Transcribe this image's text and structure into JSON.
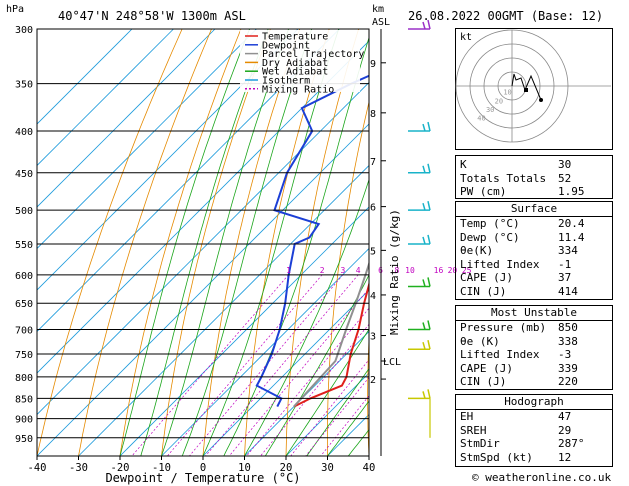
{
  "header": {
    "location": "40°47'N 248°58'W 1300m ASL",
    "datetime": "26.08.2022 00GMT (Base: 12)",
    "hpa_label": "hPa",
    "km_label": "km",
    "asl_label": "ASL"
  },
  "credit": "© weatheronline.co.uk",
  "hodograph": {
    "label": "kt",
    "ring_labels": [
      "10",
      "20",
      "30",
      "40"
    ]
  },
  "indices": [
    {
      "name": "K",
      "value": "30"
    },
    {
      "name": "Totals Totals",
      "value": "52"
    },
    {
      "name": "PW (cm)",
      "value": "1.95"
    }
  ],
  "surface": {
    "title": "Surface",
    "rows": [
      {
        "name": "Temp (°C)",
        "value": "20.4"
      },
      {
        "name": "Dewp (°C)",
        "value": "11.4"
      },
      {
        "name": "θe(K)",
        "value": "334"
      },
      {
        "name": "Lifted Index",
        "value": "-1"
      },
      {
        "name": "CAPE (J)",
        "value": "37"
      },
      {
        "name": "CIN (J)",
        "value": "414"
      }
    ]
  },
  "most_unstable": {
    "title": "Most Unstable",
    "rows": [
      {
        "name": "Pressure (mb)",
        "value": "850"
      },
      {
        "name": "θe (K)",
        "value": "338"
      },
      {
        "name": "Lifted Index",
        "value": "-3"
      },
      {
        "name": "CAPE (J)",
        "value": "339"
      },
      {
        "name": "CIN (J)",
        "value": "220"
      }
    ]
  },
  "hodograph_table": {
    "title": "Hodograph",
    "rows": [
      {
        "name": "EH",
        "value": "47"
      },
      {
        "name": "SREH",
        "value": "29"
      },
      {
        "name": "StmDir",
        "value": "287°"
      },
      {
        "name": "StmSpd (kt)",
        "value": "12"
      }
    ]
  },
  "chart_data": {
    "type": "skew-t",
    "xlabel": "Dewpoint / Temperature (°C)",
    "ylabel_right": "Mixing Ratio (g/kg)",
    "x_ticks": [
      -40,
      -30,
      -20,
      -10,
      0,
      10,
      20,
      30,
      40
    ],
    "xlim": [
      -40,
      40
    ],
    "pressure_levels": [
      300,
      350,
      400,
      450,
      500,
      550,
      600,
      650,
      700,
      750,
      800,
      850,
      900,
      950
    ],
    "ylim": [
      300,
      1000
    ],
    "km_ticks": [
      {
        "label": "9",
        "p": 330
      },
      {
        "label": "8",
        "p": 380
      },
      {
        "label": "7",
        "p": 435
      },
      {
        "label": "6",
        "p": 495
      },
      {
        "label": "5",
        "p": 560
      },
      {
        "label": "4",
        "p": 635
      },
      {
        "label": "3",
        "p": 712
      },
      {
        "label": "2",
        "p": 805
      }
    ],
    "lcl": {
      "label": "LCL",
      "p": 765
    },
    "mixing_ratio_labels": [
      "1",
      "2",
      "3",
      "4",
      "6",
      "8",
      "10",
      "16",
      "20",
      "25"
    ],
    "legend": [
      {
        "name": "Temperature",
        "color": "#e0201b",
        "dash": ""
      },
      {
        "name": "Dewpoint",
        "color": "#1c3fd6",
        "dash": ""
      },
      {
        "name": "Parcel Trajectory",
        "color": "#909090",
        "dash": ""
      },
      {
        "name": "Dry Adiabat",
        "color": "#e58a00",
        "dash": ""
      },
      {
        "name": "Wet Adiabat",
        "color": "#1aa51a",
        "dash": ""
      },
      {
        "name": "Isotherm",
        "color": "#1e9bdc",
        "dash": ""
      },
      {
        "name": "Mixing Ratio",
        "color": "#c000c0",
        "dash": "2,2"
      }
    ],
    "series": [
      {
        "name": "Temperature",
        "points": [
          [
            300,
            -40
          ],
          [
            350,
            -33
          ],
          [
            400,
            -26
          ],
          [
            450,
            -20
          ],
          [
            500,
            -14
          ],
          [
            550,
            -8
          ],
          [
            600,
            -3
          ],
          [
            650,
            2
          ],
          [
            700,
            7
          ],
          [
            750,
            11
          ],
          [
            800,
            15.5
          ],
          [
            820,
            16.5
          ],
          [
            850,
            12
          ],
          [
            870,
            10
          ]
        ]
      },
      {
        "name": "Dewpoint",
        "points": [
          [
            300,
            -57
          ],
          [
            325,
            -46
          ],
          [
            350,
            -54
          ],
          [
            375,
            -60
          ],
          [
            400,
            -52
          ],
          [
            450,
            -48
          ],
          [
            500,
            -42
          ],
          [
            520,
            -28
          ],
          [
            540,
            -27
          ],
          [
            550,
            -29
          ],
          [
            600,
            -23
          ],
          [
            650,
            -17
          ],
          [
            700,
            -12
          ],
          [
            750,
            -8
          ],
          [
            800,
            -5
          ],
          [
            820,
            -4
          ],
          [
            850,
            5
          ],
          [
            870,
            6
          ]
        ]
      },
      {
        "name": "Parcel Trajectory",
        "points": [
          [
            870,
            10
          ],
          [
            765,
            9
          ],
          [
            700,
            4
          ],
          [
            650,
            0
          ],
          [
            600,
            -4.5
          ],
          [
            550,
            -9.5
          ],
          [
            500,
            -15
          ],
          [
            450,
            -21
          ],
          [
            400,
            -27.5
          ],
          [
            350,
            -35
          ],
          [
            300,
            -43
          ]
        ]
      }
    ],
    "wind_barbs": [
      {
        "p": 300,
        "color": "#9b30c8"
      },
      {
        "p": 400,
        "color": "#19b3c9"
      },
      {
        "p": 450,
        "color": "#19b3c9"
      },
      {
        "p": 500,
        "color": "#19b3c9"
      },
      {
        "p": 550,
        "color": "#19b3c9"
      },
      {
        "p": 620,
        "color": "#20b020"
      },
      {
        "p": 700,
        "color": "#20b020"
      },
      {
        "p": 740,
        "color": "#c8c800"
      },
      {
        "p": 850,
        "color": "#c8c800"
      }
    ]
  }
}
